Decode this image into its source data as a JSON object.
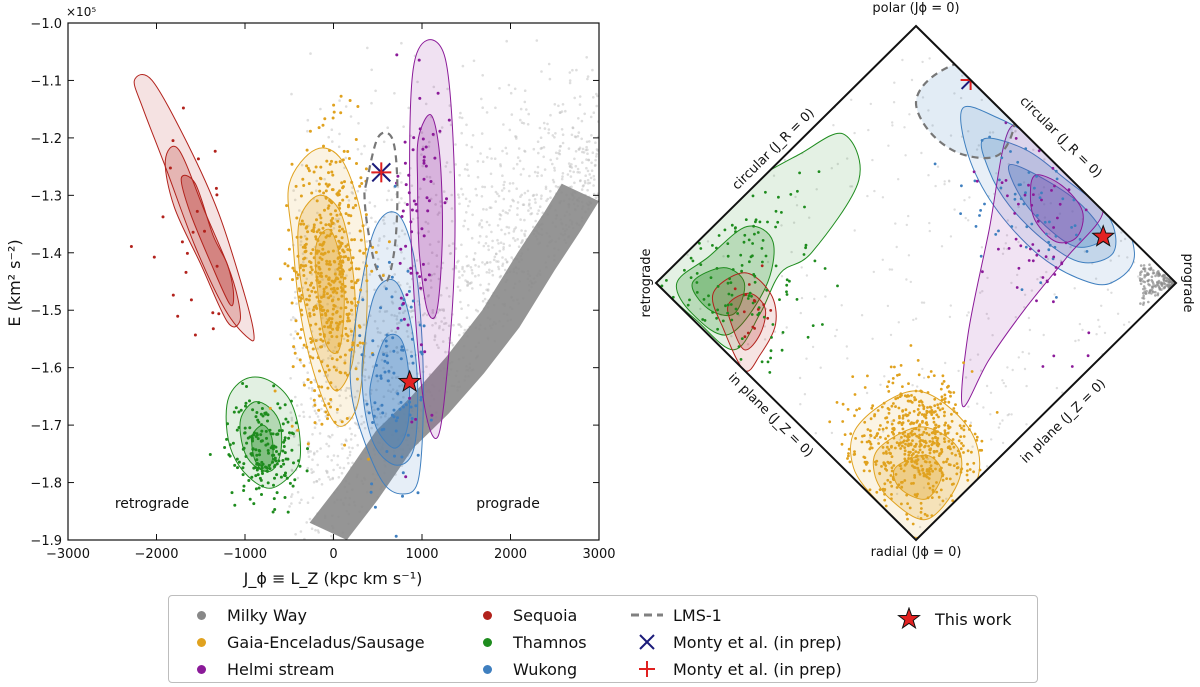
{
  "chart_data": [
    {
      "id": "left",
      "type": "scatter",
      "title": "",
      "xlabel": "J_ϕ ≡ L_Z (kpc km s⁻¹)",
      "ylabel": "E (km² s⁻²)",
      "y_multiplier": "×10⁵",
      "xlim": [
        -3000,
        3000
      ],
      "ylim": [
        -1.9,
        -1.0
      ],
      "xticks": [
        -3000,
        -2000,
        -1000,
        0,
        1000,
        2000,
        3000
      ],
      "xtick_labels": [
        "−3000",
        "−2000",
        "−1000",
        "0",
        "1000",
        "2000",
        "3000"
      ],
      "yticks": [
        -1.0,
        -1.1,
        -1.2,
        -1.3,
        -1.4,
        -1.5,
        -1.6,
        -1.7,
        -1.8,
        -1.9
      ],
      "ytick_labels": [
        "−1.0",
        "−1.1",
        "−1.2",
        "−1.3",
        "−1.4",
        "−1.5",
        "−1.6",
        "−1.7",
        "−1.8",
        "−1.9"
      ],
      "annotations": [
        {
          "text": "retrograde",
          "x": -2000,
          "y": -1.84
        },
        {
          "text": "prograde",
          "x": 1950,
          "y": -1.84
        }
      ],
      "groups": [
        {
          "name": "Sequoia",
          "color": "#b2221c",
          "cx": -1500,
          "cy": -1.37,
          "n": 24,
          "contours": [
            {
              "x": [
                -2250,
                -2050,
                -1650,
                -1300,
                -1010,
                -900,
                -950,
                -1220,
                -1560,
                -1900,
                -2150
              ],
              "y": [
                -1.1,
                -1.1,
                -1.21,
                -1.33,
                -1.47,
                -1.54,
                -1.55,
                -1.5,
                -1.39,
                -1.25,
                -1.15
              ]
            },
            {
              "x": [
                -1900,
                -1750,
                -1450,
                -1200,
                -1080,
                -1060,
                -1200,
                -1500,
                -1800
              ],
              "y": [
                -1.24,
                -1.22,
                -1.33,
                -1.42,
                -1.48,
                -1.52,
                -1.52,
                -1.42,
                -1.32
              ]
            },
            {
              "x": [
                -1720,
                -1560,
                -1360,
                -1200,
                -1130,
                -1170,
                -1380,
                -1620
              ],
              "y": [
                -1.27,
                -1.28,
                -1.37,
                -1.42,
                -1.47,
                -1.49,
                -1.42,
                -1.33
              ]
            }
          ]
        },
        {
          "name": "Gaia-Enceladus/Sausage",
          "color": "#e0a21f",
          "cx": -40,
          "cy": -1.43,
          "n": 520,
          "contours": [
            {
              "x": [
                -500,
                -200,
                100,
                320,
                380,
                350,
                260,
                40,
                -200,
                -380,
                -460
              ],
              "y": [
                -1.28,
                -1.22,
                -1.24,
                -1.34,
                -1.46,
                -1.57,
                -1.67,
                -1.7,
                -1.62,
                -1.5,
                -1.38
              ]
            },
            {
              "x": [
                -380,
                -160,
                80,
                210,
                250,
                200,
                20,
                -170,
                -310,
                -390
              ],
              "y": [
                -1.34,
                -1.3,
                -1.33,
                -1.42,
                -1.52,
                -1.6,
                -1.64,
                -1.58,
                -1.5,
                -1.42
              ]
            },
            {
              "x": [
                -200,
                -40,
                90,
                120,
                60,
                -80,
                -170
              ],
              "y": [
                -1.39,
                -1.36,
                -1.42,
                -1.5,
                -1.57,
                -1.56,
                -1.48
              ]
            }
          ]
        },
        {
          "name": "Thamnos",
          "color": "#1e8c1e",
          "cx": -800,
          "cy": -1.74,
          "n": 190,
          "contours": [
            {
              "x": [
                -1180,
                -1000,
                -760,
                -520,
                -400,
                -380,
                -500,
                -720,
                -960,
                -1140,
                -1210
              ],
              "y": [
                -1.65,
                -1.62,
                -1.62,
                -1.65,
                -1.7,
                -1.76,
                -1.79,
                -1.81,
                -1.79,
                -1.75,
                -1.7
              ]
            },
            {
              "x": [
                -1050,
                -900,
                -720,
                -600,
                -600,
                -710,
                -900,
                -1020
              ],
              "y": [
                -1.69,
                -1.66,
                -1.67,
                -1.7,
                -1.75,
                -1.78,
                -1.77,
                -1.74
              ]
            },
            {
              "x": [
                -920,
                -800,
                -700,
                -690,
                -780,
                -890
              ],
              "y": [
                -1.72,
                -1.7,
                -1.72,
                -1.76,
                -1.78,
                -1.76
              ]
            }
          ]
        },
        {
          "name": "Wukong",
          "color": "#3f7fbf",
          "cx": 680,
          "cy": -1.62,
          "n": 90,
          "contours": [
            {
              "x": [
                220,
                440,
                700,
                900,
                1000,
                1010,
                950,
                780,
                560,
                330,
                200
              ],
              "y": [
                -1.55,
                -1.37,
                -1.33,
                -1.4,
                -1.55,
                -1.7,
                -1.8,
                -1.82,
                -1.8,
                -1.72,
                -1.64
              ]
            },
            {
              "x": [
                330,
                470,
                700,
                870,
                950,
                910,
                720,
                480,
                350
              ],
              "y": [
                -1.58,
                -1.47,
                -1.45,
                -1.52,
                -1.63,
                -1.74,
                -1.77,
                -1.74,
                -1.67
              ]
            },
            {
              "x": [
                430,
                580,
                760,
                850,
                840,
                700,
                500,
                420
              ],
              "y": [
                -1.62,
                -1.55,
                -1.55,
                -1.61,
                -1.7,
                -1.74,
                -1.71,
                -1.66
              ]
            }
          ]
        },
        {
          "name": "Helmi stream",
          "color": "#8b1a99",
          "cx": 960,
          "cy": -1.36,
          "n": 70,
          "contours": [
            {
              "x": [
                900,
                1060,
                1260,
                1350,
                1370,
                1300,
                1180,
                1020,
                900,
                860
              ],
              "y": [
                -1.08,
                -1.03,
                -1.06,
                -1.2,
                -1.4,
                -1.58,
                -1.72,
                -1.66,
                -1.45,
                -1.25
              ]
            },
            {
              "x": [
                960,
                1100,
                1200,
                1230,
                1170,
                1060,
                970,
                950
              ],
              "y": [
                -1.2,
                -1.16,
                -1.23,
                -1.37,
                -1.5,
                -1.5,
                -1.4,
                -1.28
              ]
            }
          ]
        }
      ],
      "lms1": {
        "x": [
          370,
          500,
          660,
          720,
          700,
          600,
          470,
          380,
          350
        ],
        "y": [
          -1.28,
          -1.2,
          -1.2,
          -1.27,
          -1.38,
          -1.45,
          -1.42,
          -1.35,
          -1.3
        ]
      },
      "milky_way_ridge": [
        [
          150,
          -1.9
        ],
        [
          500,
          -1.83
        ],
        [
          900,
          -1.74
        ],
        [
          1300,
          -1.68
        ],
        [
          1700,
          -1.61
        ],
        [
          2100,
          -1.53
        ],
        [
          2500,
          -1.43
        ],
        [
          2800,
          -1.36
        ],
        [
          3000,
          -1.31
        ]
      ],
      "markers": [
        {
          "name": "Monty et al. (in prep) ×",
          "x": 540,
          "y": -1.26
        },
        {
          "name": "Monty et al. (in prep) +",
          "x": 540,
          "y": -1.26
        },
        {
          "name": "This work",
          "x": 860,
          "y": -1.625
        }
      ]
    },
    {
      "id": "right",
      "type": "scatter",
      "title": "",
      "projection": "action-diamond",
      "corner_labels": {
        "top": "polar (Jϕ = 0)",
        "bottom": "radial (Jϕ = 0)",
        "left": "retrograde",
        "right": "prograde"
      },
      "edge_labels": {
        "upper_left": "circular (J_R = 0)",
        "upper_right": "circular (J_R = 0)",
        "lower_left": "in plane (J_Z = 0)",
        "lower_right": "in plane (J_Z = 0)"
      },
      "groups": [
        {
          "name": "Thamnos",
          "color": "#1e8c1e",
          "cx": -0.7,
          "cy": 0.04,
          "n": 170,
          "contours": [
            {
              "x": [
                -0.99,
                -0.85,
                -0.65,
                -0.45,
                -0.28,
                -0.22,
                -0.4,
                -0.52,
                -0.6,
                -0.7,
                -0.85,
                -0.99
              ],
              "y": [
                0.01,
                0.2,
                0.38,
                0.5,
                0.58,
                0.4,
                0.12,
                0.04,
                -0.12,
                -0.26,
                -0.14,
                -0.01
              ]
            },
            {
              "x": [
                -0.92,
                -0.8,
                -0.65,
                -0.55,
                -0.58,
                -0.72,
                -0.86
              ],
              "y": [
                0.0,
                0.1,
                0.22,
                0.16,
                -0.02,
                -0.2,
                -0.12
              ]
            },
            {
              "x": [
                -0.86,
                -0.74,
                -0.66,
                -0.7,
                -0.8
              ],
              "y": [
                0.0,
                0.06,
                0.0,
                -0.12,
                -0.1
              ]
            }
          ]
        },
        {
          "name": "Sequoia",
          "color": "#b2221c",
          "cx": -0.63,
          "cy": -0.12,
          "n": 16,
          "contours": [
            {
              "x": [
                -0.78,
                -0.66,
                -0.56,
                -0.54,
                -0.6,
                -0.66,
                -0.74
              ],
              "y": [
                -0.04,
                0.04,
                -0.04,
                -0.16,
                -0.28,
                -0.34,
                -0.18
              ]
            },
            {
              "x": [
                -0.72,
                -0.64,
                -0.58,
                -0.6,
                -0.66,
                -0.71
              ],
              "y": [
                -0.08,
                -0.04,
                -0.1,
                -0.2,
                -0.26,
                -0.16
              ]
            }
          ]
        },
        {
          "name": "Gaia-Enceladus/Sausage",
          "color": "#e0a21f",
          "cx": 0.0,
          "cy": -0.62,
          "n": 600,
          "contours": [
            {
              "x": [
                -0.22,
                0.0,
                0.2,
                0.24,
                0.12,
                0.0,
                -0.12,
                -0.24
              ],
              "y": [
                -0.55,
                -0.42,
                -0.56,
                -0.75,
                -0.9,
                -0.99,
                -0.88,
                -0.72
              ]
            },
            {
              "x": [
                -0.14,
                0.02,
                0.16,
                0.16,
                0.04,
                -0.1,
                -0.16
              ],
              "y": [
                -0.64,
                -0.56,
                -0.64,
                -0.78,
                -0.92,
                -0.84,
                -0.74
              ]
            },
            {
              "x": [
                -0.08,
                0.04,
                0.1,
                0.04,
                -0.06
              ],
              "y": [
                -0.72,
                -0.67,
                -0.74,
                -0.84,
                -0.8
              ]
            }
          ]
        },
        {
          "name": "Wukong",
          "color": "#3f7fbf",
          "cx": 0.45,
          "cy": 0.3,
          "n": 70,
          "contours": [
            {
              "x": [
                0.18,
                0.32,
                0.5,
                0.72,
                0.84,
                0.75,
                0.62,
                0.46,
                0.3,
                0.2
              ],
              "y": [
                0.68,
                0.64,
                0.54,
                0.4,
                0.12,
                0.0,
                0.02,
                0.12,
                0.3,
                0.5
              ]
            },
            {
              "x": [
                0.26,
                0.42,
                0.58,
                0.74,
                0.76,
                0.64,
                0.5,
                0.36,
                0.28
              ],
              "y": [
                0.56,
                0.52,
                0.4,
                0.26,
                0.12,
                0.08,
                0.16,
                0.3,
                0.44
              ]
            },
            {
              "x": [
                0.36,
                0.5,
                0.64,
                0.72,
                0.62,
                0.5,
                0.4
              ],
              "y": [
                0.46,
                0.4,
                0.3,
                0.18,
                0.14,
                0.22,
                0.34
              ]
            }
          ]
        },
        {
          "name": "Helmi stream",
          "color": "#8b1a99",
          "cx": 0.5,
          "cy": 0.22,
          "n": 60,
          "contours": [
            {
              "x": [
                0.36,
                0.48,
                0.62,
                0.72,
                0.58,
                0.42,
                0.28,
                0.18,
                0.2,
                0.28
              ],
              "y": [
                0.6,
                0.52,
                0.42,
                0.28,
                0.1,
                -0.1,
                -0.3,
                -0.48,
                -0.2,
                0.2
              ]
            },
            {
              "x": [
                0.46,
                0.56,
                0.64,
                0.62,
                0.54,
                0.46,
                0.44
              ],
              "y": [
                0.42,
                0.38,
                0.28,
                0.18,
                0.16,
                0.24,
                0.34
              ]
            }
          ]
        }
      ],
      "lms1": {
        "x": [
          0.06,
          0.2,
          0.32,
          0.38,
          0.32,
          0.18,
          0.06,
          0.0
        ],
        "y": [
          0.8,
          0.86,
          0.78,
          0.64,
          0.5,
          0.5,
          0.58,
          0.7
        ]
      },
      "markers": [
        {
          "name": "Monty et al. (in prep) ×",
          "x": 0.21,
          "y": 0.79
        },
        {
          "name": "Monty et al. (in prep) +",
          "x": 0.21,
          "y": 0.79
        },
        {
          "name": "This work",
          "x": 0.72,
          "y": 0.18
        }
      ]
    }
  ],
  "legend": {
    "items": [
      {
        "label": "Milky Way",
        "marker": "dot",
        "color": "#888888"
      },
      {
        "label": "Gaia-Enceladus/Sausage",
        "marker": "dot",
        "color": "#e0a21f"
      },
      {
        "label": "Helmi stream",
        "marker": "dot",
        "color": "#8b1a99"
      },
      {
        "label": "Sequoia",
        "marker": "dot",
        "color": "#b2221c"
      },
      {
        "label": "Thamnos",
        "marker": "dot",
        "color": "#1e8c1e"
      },
      {
        "label": "Wukong",
        "marker": "dot",
        "color": "#3f7fbf"
      },
      {
        "label": "LMS-1",
        "marker": "dash",
        "color": "#808080"
      },
      {
        "label": "Monty et al. (in prep)",
        "marker": "x",
        "color": "#1b1b7a"
      },
      {
        "label": "Monty et al. (in prep)",
        "marker": "plus",
        "color": "#e02020"
      },
      {
        "label": "This work",
        "marker": "star",
        "color": "#e32222"
      }
    ]
  }
}
